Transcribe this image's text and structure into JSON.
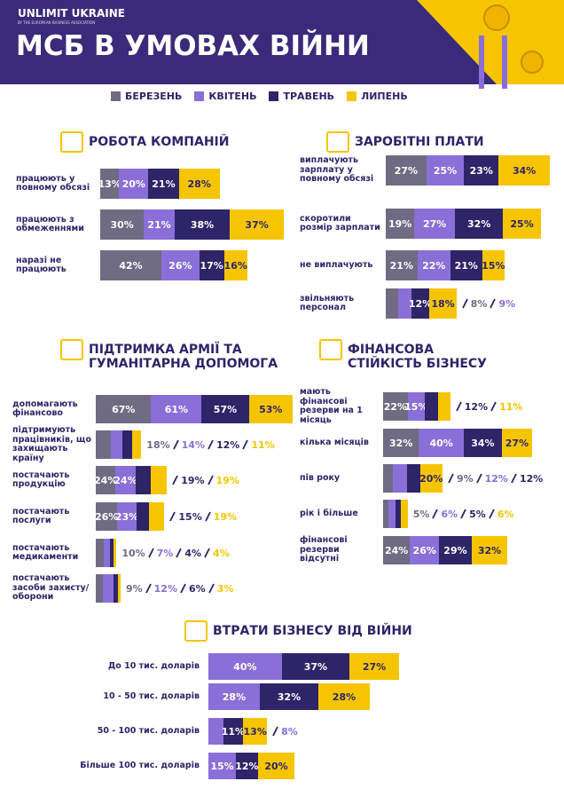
{
  "header": {
    "brand": "UNLIMIT UKRAINE",
    "tagline": "BY THE EUROPEAN BUSINESS ASSOCIATION",
    "title": "МСБ В УМОВАХ ВІЙНИ"
  },
  "chart_data": [
    {
      "type": "bar",
      "title": "РОБОТА КОМПАНІЙ",
      "categories": [
        "працюють у повному обсязі",
        "працюють з обмеженнями",
        "наразі не працюють"
      ],
      "series": [
        {
          "name": "БЕРЕЗЕНЬ",
          "color": "#6f6b82",
          "values": [
            13,
            30,
            42
          ],
          "value_labels": [
            "13%",
            "30%",
            "42%"
          ]
        },
        {
          "name": "КВІТЕНЬ",
          "color": "#8a6fd8",
          "values": [
            20,
            21,
            26
          ],
          "value_labels": [
            "20%",
            "21%",
            "26%"
          ]
        },
        {
          "name": "ТРАВЕНЬ",
          "color": "#2e2468",
          "values": [
            21,
            38,
            17
          ],
          "value_labels": [
            "21%",
            "38%",
            "17%"
          ]
        },
        {
          "name": "ЛИПЕНЬ",
          "color": "#f6c500",
          "values": [
            28,
            37,
            16
          ],
          "value_labels": [
            "28%",
            "37%",
            "16%"
          ]
        }
      ]
    },
    {
      "type": "bar",
      "title": "ЗАРОБІТНІ ПЛАТИ",
      "categories": [
        "виплачують зарплату у повному обсязі",
        "скоротили розмір зарплати",
        "не виплачують",
        "звільняють персонал"
      ],
      "series": [
        {
          "color": "#6f6b82",
          "values": [
            27,
            19,
            21,
            8
          ],
          "value_labels": [
            "27%",
            "19%",
            "21%",
            "8%"
          ]
        },
        {
          "color": "#8a6fd8",
          "values": [
            25,
            27,
            22,
            9
          ],
          "value_labels": [
            "25%",
            "27%",
            "22%",
            "9%"
          ]
        },
        {
          "color": "#2e2468",
          "values": [
            23,
            32,
            21,
            12
          ],
          "value_labels": [
            "23%",
            "32%",
            "21%",
            "12%"
          ]
        },
        {
          "color": "#f6c500",
          "values": [
            34,
            25,
            15,
            18
          ],
          "value_labels": [
            "34%",
            "25%",
            "15%",
            "18%"
          ]
        }
      ]
    },
    {
      "type": "bar",
      "title": "ПІДТРИМКА АРМІЇ ТА ГУМАНІТАРНА ДОПОМОГА",
      "categories": [
        "допомагають фінансово",
        "підтримують працівників, що захищають країну",
        "постачають продукцію",
        "постачають послуги",
        "постачають медикаменти",
        "постачають засоби захисту/оборони"
      ],
      "series": [
        {
          "color": "#6f6b82",
          "values": [
            67,
            18,
            24,
            26,
            10,
            9
          ],
          "value_labels": [
            "67%",
            "18%",
            "24%",
            "26%",
            "10%",
            "9%"
          ]
        },
        {
          "color": "#8a6fd8",
          "values": [
            61,
            14,
            24,
            23,
            7,
            12
          ],
          "value_labels": [
            "61%",
            "14%",
            "24%",
            "23%",
            "7%",
            "12%"
          ]
        },
        {
          "color": "#2e2468",
          "values": [
            57,
            12,
            19,
            15,
            4,
            6
          ],
          "value_labels": [
            "57%",
            "12%",
            "19%",
            "15%",
            "4%",
            "6%"
          ]
        },
        {
          "color": "#f6c500",
          "values": [
            53,
            11,
            19,
            19,
            4,
            3
          ],
          "value_labels": [
            "53%",
            "11%",
            "19%",
            "19%",
            "4%",
            "3%"
          ]
        }
      ]
    },
    {
      "type": "bar",
      "title": "ФІНАНСОВА СТІЙКІСТЬ БІЗНЕСУ",
      "categories": [
        "мають фінансові резерви на 1 місяць",
        "кілька місяців",
        "пів року",
        "рік і більше",
        "фінансові резерви відсутні"
      ],
      "series": [
        {
          "color": "#6f6b82",
          "values": [
            22,
            32,
            9,
            5,
            24
          ],
          "value_labels": [
            "22%",
            "32%",
            "9%",
            "5%",
            "24%"
          ]
        },
        {
          "color": "#8a6fd8",
          "values": [
            15,
            40,
            12,
            6,
            26
          ],
          "value_labels": [
            "15%",
            "40%",
            "12%",
            "6%",
            "26%"
          ]
        },
        {
          "color": "#2e2468",
          "values": [
            12,
            34,
            12,
            5,
            29
          ],
          "value_labels": [
            "12%",
            "34%",
            "12%",
            "5%",
            "29%"
          ]
        },
        {
          "color": "#f6c500",
          "values": [
            11,
            27,
            20,
            6,
            32
          ],
          "value_labels": [
            "11%",
            "27%",
            "20%",
            "6%",
            "32%"
          ]
        }
      ]
    },
    {
      "type": "bar",
      "title": "ВТРАТИ БІЗНЕСУ ВІД ВІЙНИ",
      "categories": [
        "До 10 тис. доларів",
        "10 - 50 тис. доларів",
        "50 - 100 тис. доларів",
        "Більше 100 тис. доларів"
      ],
      "series": [
        {
          "color": "#8a6fd8",
          "values": [
            40,
            28,
            8,
            15
          ],
          "value_labels": [
            "40%",
            "28%",
            "8%",
            "15%"
          ]
        },
        {
          "color": "#2e2468",
          "values": [
            37,
            32,
            11,
            12
          ],
          "value_labels": [
            "37%",
            "32%",
            "11%",
            "12%"
          ]
        },
        {
          "color": "#f6c500",
          "values": [
            27,
            28,
            13,
            20
          ],
          "value_labels": [
            "27%",
            "28%",
            "13%",
            "20%"
          ]
        }
      ]
    }
  ]
}
